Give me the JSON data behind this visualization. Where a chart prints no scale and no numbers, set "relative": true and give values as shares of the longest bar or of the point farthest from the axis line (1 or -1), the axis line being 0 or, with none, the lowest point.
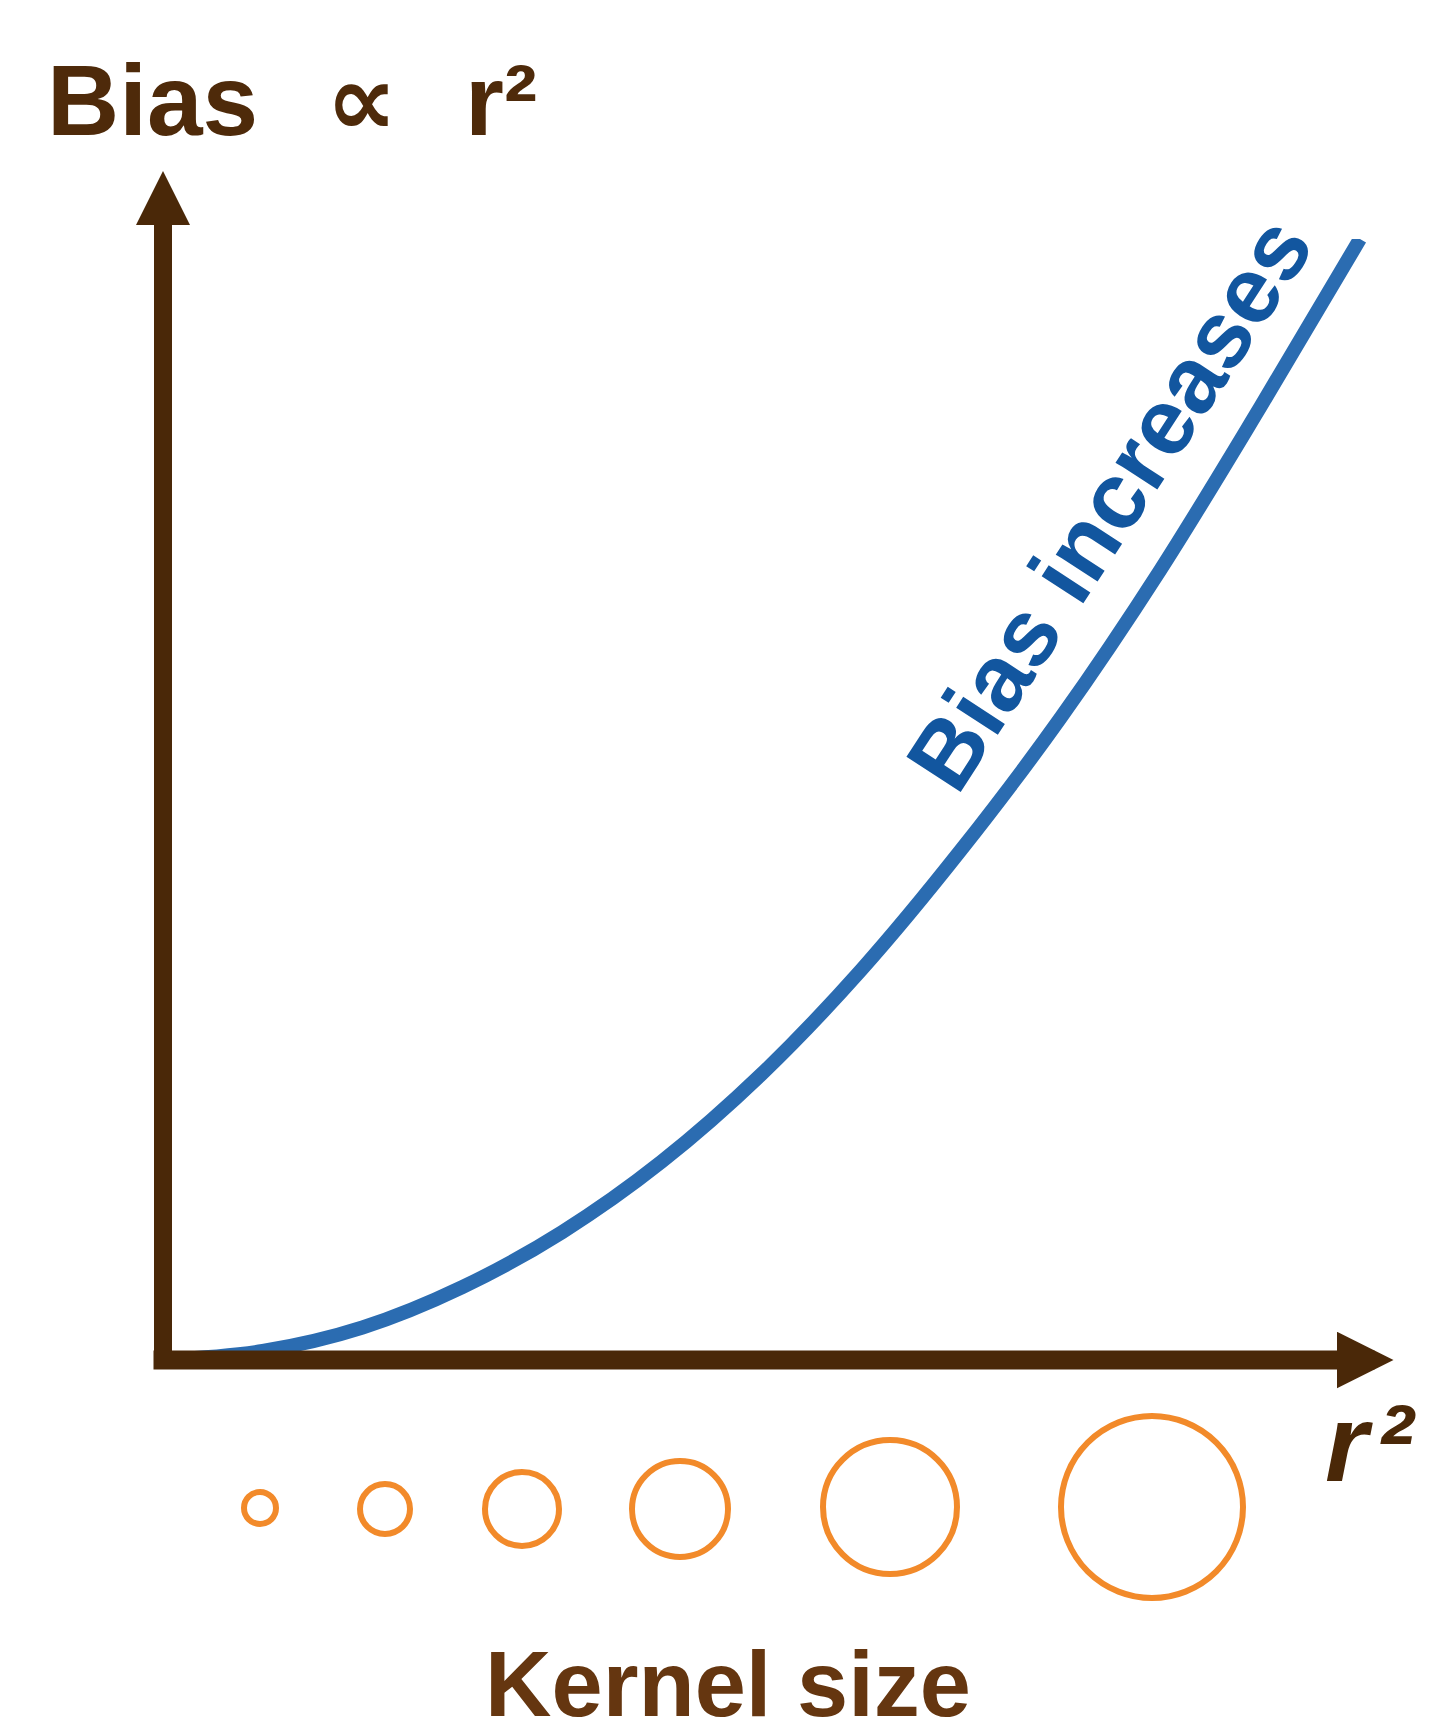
{
  "chart_data": {
    "type": "line",
    "ylabel": "Bias ∝ r²",
    "xlabel": "r²",
    "annotations": [
      "Kernel size"
    ],
    "relative": true,
    "marker": "none",
    "line_style": "solid",
    "categories": [
      null,
      null,
      null,
      null,
      null,
      null,
      null,
      null,
      null,
      null,
      null,
      null,
      null
    ],
    "series": [
      {
        "name": "Bias increases",
        "color": "#2b6cb1",
        "values": [
          0,
          0.008,
          0.029,
          0.065,
          0.114,
          0.177,
          0.255,
          0.348,
          0.455,
          0.573,
          0.705,
          0.85,
          1
        ]
      }
    ]
  }
}
